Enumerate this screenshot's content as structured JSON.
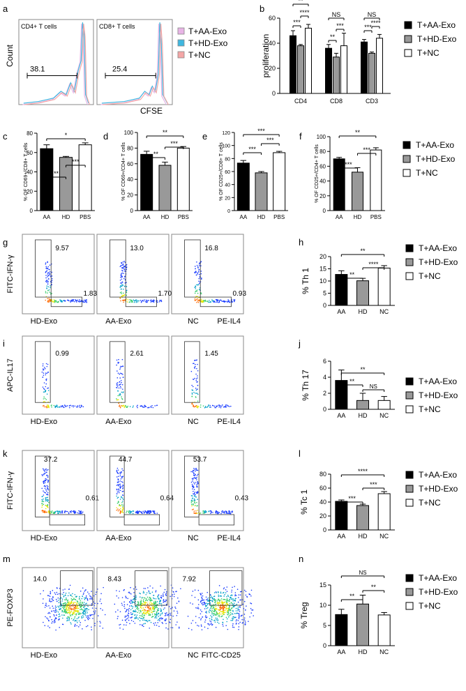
{
  "chart_data": [
    {
      "panel": "a",
      "type": "histogram",
      "xlabel": "CFSE",
      "ylabel": "Count",
      "subplots": [
        {
          "title": "CD4+ T cells",
          "gate_value": "38.1"
        },
        {
          "title": "CD8+ T cells",
          "gate_value": "25.4"
        }
      ],
      "legend": [
        {
          "label": "T+AA-Exo",
          "color": "#e8b4e6"
        },
        {
          "label": "T+HD-Exo",
          "color": "#3fb7e0"
        },
        {
          "label": "T+NC",
          "color": "#f4a6a6"
        }
      ]
    },
    {
      "panel": "b",
      "type": "bar",
      "ylabel": "proliferation",
      "ylim": [
        0,
        60
      ],
      "yticks": [
        "0",
        "20",
        "40",
        "60"
      ],
      "categories": [
        "CD4",
        "CD8",
        "CD3"
      ],
      "series": [
        {
          "name": "T+AA-Exo",
          "color": "#000000",
          "values": [
            46,
            36,
            41
          ],
          "errors": [
            4,
            3,
            2
          ]
        },
        {
          "name": "T+HD-Exo",
          "color": "#999999",
          "values": [
            38,
            29,
            32
          ],
          "errors": [
            1,
            3,
            1
          ]
        },
        {
          "name": "T+NC",
          "color": "#ffffff",
          "values": [
            52,
            38,
            44
          ],
          "errors": [
            3,
            10,
            3
          ]
        }
      ],
      "significance": [
        {
          "between": [
            0,
            1
          ],
          "group": 0,
          "label": "***"
        },
        {
          "between": [
            1,
            2
          ],
          "group": 0,
          "label": "****"
        },
        {
          "between": [
            0,
            2
          ],
          "group": 0,
          "label": "**"
        },
        {
          "between": [
            0,
            1
          ],
          "group": 1,
          "label": "**"
        },
        {
          "between": [
            1,
            2
          ],
          "group": 1,
          "label": "***"
        },
        {
          "between": [
            0,
            2
          ],
          "group": 1,
          "label": "NS"
        },
        {
          "between": [
            0,
            1
          ],
          "group": 2,
          "label": "***"
        },
        {
          "between": [
            1,
            2
          ],
          "group": 2,
          "label": "****"
        },
        {
          "between": [
            0,
            2
          ],
          "group": 2,
          "label": "NS"
        }
      ]
    },
    {
      "panel": "c",
      "type": "bar",
      "ylabel": "% OF CD69+/CD8+ T cells",
      "ylim": [
        0,
        80
      ],
      "yticks": [
        "0",
        "20",
        "40",
        "60",
        "80"
      ],
      "categories": [
        "AA",
        "HD",
        "PBS"
      ],
      "values": [
        64,
        55,
        68
      ],
      "errors": [
        4,
        1,
        2
      ],
      "colors": [
        "#000000",
        "#999999",
        "#ffffff"
      ],
      "significance": [
        {
          "between": [
            0,
            1
          ],
          "label": "**"
        },
        {
          "between": [
            1,
            2
          ],
          "label": "***"
        },
        {
          "between": [
            0,
            2
          ],
          "label": "*"
        }
      ]
    },
    {
      "panel": "d",
      "type": "bar",
      "ylabel": "% OF CD69+/CD4+ T cells",
      "ylim": [
        0,
        100
      ],
      "yticks": [
        "0",
        "20",
        "40",
        "60",
        "80",
        "100"
      ],
      "categories": [
        "AA",
        "HD",
        "PBS"
      ],
      "values": [
        72,
        58,
        80
      ],
      "errors": [
        4,
        4,
        2
      ],
      "colors": [
        "#000000",
        "#999999",
        "#ffffff"
      ],
      "significance": [
        {
          "between": [
            0,
            1
          ],
          "label": "**"
        },
        {
          "between": [
            1,
            2
          ],
          "label": "***"
        },
        {
          "between": [
            0,
            2
          ],
          "label": "**"
        }
      ]
    },
    {
      "panel": "e",
      "type": "bar",
      "ylabel": "% OF CD25+/CD8+ T cells",
      "ylim": [
        0,
        120
      ],
      "yticks": [
        "0",
        "20",
        "40",
        "60",
        "80",
        "100",
        "120"
      ],
      "categories": [
        "AA",
        "HD",
        "PBS"
      ],
      "values": [
        73,
        58,
        89
      ],
      "errors": [
        4,
        2,
        2
      ],
      "colors": [
        "#000000",
        "#999999",
        "#ffffff"
      ],
      "significance": [
        {
          "between": [
            0,
            1
          ],
          "label": "***"
        },
        {
          "between": [
            1,
            2
          ],
          "label": "***"
        },
        {
          "between": [
            0,
            2
          ],
          "label": "***"
        }
      ]
    },
    {
      "panel": "f",
      "type": "bar",
      "ylabel": "% OF CD25+/CD4+ T cells",
      "ylim": [
        0,
        100
      ],
      "yticks": [
        "0",
        "20",
        "40",
        "60",
        "80",
        "100"
      ],
      "categories": [
        "AA",
        "HD",
        "PBS"
      ],
      "values": [
        70,
        52,
        82
      ],
      "errors": [
        2,
        6,
        3
      ],
      "colors": [
        "#000000",
        "#999999",
        "#ffffff"
      ],
      "legend": [
        {
          "label": "T+AA-Exo",
          "color": "#000000"
        },
        {
          "label": "T+HD-Exo",
          "color": "#999999"
        },
        {
          "label": "T+NC",
          "color": "#ffffff"
        }
      ],
      "significance": [
        {
          "between": [
            0,
            1
          ],
          "label": "***"
        },
        {
          "between": [
            1,
            2
          ],
          "label": "***"
        },
        {
          "between": [
            0,
            2
          ],
          "label": "**"
        }
      ]
    },
    {
      "panel": "g",
      "type": "flow_dotplot",
      "ylabel": "FITC-IFN-γ",
      "xlabel": "PE-IL4",
      "plots": [
        {
          "sample": "HD-Exo",
          "upper": "9.57",
          "lower": "1.83"
        },
        {
          "sample": "AA-Exo",
          "upper": "13.0",
          "lower": "1.70"
        },
        {
          "sample": "NC",
          "upper": "16.8",
          "lower": "0.93"
        }
      ]
    },
    {
      "panel": "h",
      "type": "bar",
      "ylabel": "% Th 1",
      "ylim": [
        0,
        20
      ],
      "yticks": [
        "0",
        "5",
        "10",
        "15",
        "20"
      ],
      "categories": [
        "AA",
        "HD",
        "NC"
      ],
      "values": [
        12.7,
        10.1,
        15.3
      ],
      "errors": [
        1.5,
        1.0,
        1.0
      ],
      "colors": [
        "#000000",
        "#999999",
        "#ffffff"
      ],
      "legend": [
        {
          "label": "T+AA-Exo",
          "color": "#000000"
        },
        {
          "label": "T+HD-Exo",
          "color": "#999999"
        },
        {
          "label": "T+NC",
          "color": "#ffffff"
        }
      ],
      "significance": [
        {
          "between": [
            0,
            1
          ],
          "label": "**"
        },
        {
          "between": [
            1,
            2
          ],
          "label": "****"
        },
        {
          "between": [
            0,
            2
          ],
          "label": "**"
        }
      ]
    },
    {
      "panel": "i",
      "type": "flow_dotplot",
      "ylabel": "APC-IL17",
      "xlabel": "PE-IL4",
      "plots": [
        {
          "sample": "HD-Exo",
          "upper": "0.99"
        },
        {
          "sample": "AA-Exo",
          "upper": "2.61"
        },
        {
          "sample": "NC",
          "upper": "1.45"
        }
      ]
    },
    {
      "panel": "j",
      "type": "bar",
      "ylabel": "% Th 17",
      "ylim": [
        0,
        6
      ],
      "yticks": [
        "0",
        "2",
        "4",
        "6"
      ],
      "categories": [
        "AA",
        "HD",
        "NC"
      ],
      "values": [
        3.6,
        1.1,
        1.1
      ],
      "errors": [
        1.3,
        0.9,
        0.5
      ],
      "colors": [
        "#000000",
        "#999999",
        "#ffffff"
      ],
      "legend": [
        {
          "label": "T+AA-Exo",
          "color": "#000000"
        },
        {
          "label": "T+HD-Exo",
          "color": "#999999"
        },
        {
          "label": "T+NC",
          "color": "#ffffff"
        }
      ],
      "significance": [
        {
          "between": [
            0,
            1
          ],
          "label": "**"
        },
        {
          "between": [
            1,
            2
          ],
          "label": "NS"
        },
        {
          "between": [
            0,
            2
          ],
          "label": "**"
        }
      ]
    },
    {
      "panel": "k",
      "type": "flow_dotplot",
      "ylabel": "FITC-IFN-γ",
      "xlabel": "PE-IL4",
      "plots": [
        {
          "sample": "HD-Exo",
          "upper": "37.2",
          "lower": "0.61"
        },
        {
          "sample": "AA-Exo",
          "upper": "44.7",
          "lower": "0.64"
        },
        {
          "sample": "NC",
          "upper": "53.7",
          "lower": "0.43"
        }
      ]
    },
    {
      "panel": "l",
      "type": "bar",
      "ylabel": "% Tc 1",
      "ylim": [
        0,
        80
      ],
      "yticks": [
        "0",
        "20",
        "40",
        "60",
        "80"
      ],
      "categories": [
        "AA",
        "HD",
        "NC"
      ],
      "values": [
        41,
        35,
        52
      ],
      "errors": [
        2,
        2,
        3
      ],
      "colors": [
        "#000000",
        "#999999",
        "#ffffff"
      ],
      "legend": [
        {
          "label": "T+AA-Exo",
          "color": "#000000"
        },
        {
          "label": "T+HD-Exo",
          "color": "#999999"
        },
        {
          "label": "T+NC",
          "color": "#ffffff"
        }
      ],
      "significance": [
        {
          "between": [
            0,
            1
          ],
          "label": "***"
        },
        {
          "between": [
            1,
            2
          ],
          "label": "***"
        },
        {
          "between": [
            0,
            2
          ],
          "label": "****"
        }
      ]
    },
    {
      "panel": "m",
      "type": "flow_dotplot",
      "ylabel": "PE-FOXP3",
      "xlabel": "FITC-CD25",
      "plots": [
        {
          "sample": "HD-Exo",
          "upper": "14.0"
        },
        {
          "sample": "AA-Exo",
          "upper": "8.43"
        },
        {
          "sample": "NC",
          "upper": "7.92"
        }
      ]
    },
    {
      "panel": "n",
      "type": "bar",
      "ylabel": "% Treg",
      "ylim": [
        0,
        15
      ],
      "yticks": [
        "0",
        "5",
        "10",
        "15"
      ],
      "categories": [
        "AA",
        "HD",
        "NC"
      ],
      "values": [
        7.7,
        10.3,
        7.6
      ],
      "errors": [
        1.3,
        2.2,
        0.6
      ],
      "colors": [
        "#000000",
        "#999999",
        "#ffffff"
      ],
      "legend": [
        {
          "label": "T+AA-Exo",
          "color": "#000000"
        },
        {
          "label": "T+HD-Exo",
          "color": "#999999"
        },
        {
          "label": "T+NC",
          "color": "#ffffff"
        }
      ],
      "significance": [
        {
          "between": [
            0,
            1
          ],
          "label": "**"
        },
        {
          "between": [
            1,
            2
          ],
          "label": "**"
        },
        {
          "between": [
            0,
            2
          ],
          "label": "NS"
        }
      ]
    }
  ]
}
